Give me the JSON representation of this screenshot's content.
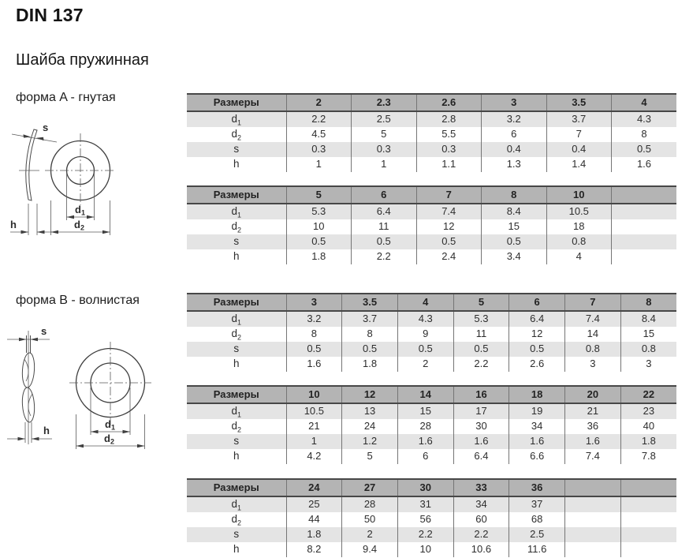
{
  "document": {
    "title": "DIN 137",
    "subtitle": "Шайба пружинная"
  },
  "sections": {
    "a": {
      "label": "форма A - гнутая"
    },
    "b": {
      "label": "форма B - волнистая"
    }
  },
  "drawing": {
    "s_label": "s",
    "h_label": "h",
    "d_base": "d",
    "d1_sub": "1",
    "d2_sub": "2"
  },
  "colors": {
    "header_bg": "#b4b4b4",
    "stripe_bg": "#e4e4e4",
    "border_dark": "#474747",
    "border_light": "#757575",
    "text": "#2e2e2e"
  },
  "tables": [
    {
      "id": "form-a-part-1",
      "header_label": "Размеры",
      "sizes": [
        "2",
        "2.3",
        "2.6",
        "3",
        "3.5",
        "4"
      ],
      "rows": [
        {
          "label": "d",
          "sub": "1",
          "values": [
            "2.2",
            "2.5",
            "2.8",
            "3.2",
            "3.7",
            "4.3"
          ]
        },
        {
          "label": "d",
          "sub": "2",
          "values": [
            "4.5",
            "5",
            "5.5",
            "6",
            "7",
            "8"
          ]
        },
        {
          "label": "s",
          "sub": "",
          "values": [
            "0.3",
            "0.3",
            "0.3",
            "0.4",
            "0.4",
            "0.5"
          ]
        },
        {
          "label": "h",
          "sub": "",
          "values": [
            "1",
            "1",
            "1.1",
            "1.3",
            "1.4",
            "1.6"
          ]
        }
      ]
    },
    {
      "id": "form-a-part-2",
      "header_label": "Размеры",
      "sizes": [
        "5",
        "6",
        "7",
        "8",
        "10",
        ""
      ],
      "rows": [
        {
          "label": "d",
          "sub": "1",
          "values": [
            "5.3",
            "6.4",
            "7.4",
            "8.4",
            "10.5",
            ""
          ]
        },
        {
          "label": "d",
          "sub": "2",
          "values": [
            "10",
            "11",
            "12",
            "15",
            "18",
            ""
          ]
        },
        {
          "label": "s",
          "sub": "",
          "values": [
            "0.5",
            "0.5",
            "0.5",
            "0.5",
            "0.8",
            ""
          ]
        },
        {
          "label": "h",
          "sub": "",
          "values": [
            "1.8",
            "2.2",
            "2.4",
            "3.4",
            "4",
            ""
          ]
        }
      ]
    },
    {
      "id": "form-b-part-1",
      "header_label": "Размеры",
      "sizes": [
        "3",
        "3.5",
        "4",
        "5",
        "6",
        "7",
        "8"
      ],
      "rows": [
        {
          "label": "d",
          "sub": "1",
          "values": [
            "3.2",
            "3.7",
            "4.3",
            "5.3",
            "6.4",
            "7.4",
            "8.4"
          ]
        },
        {
          "label": "d",
          "sub": "2",
          "values": [
            "8",
            "8",
            "9",
            "11",
            "12",
            "14",
            "15"
          ]
        },
        {
          "label": "s",
          "sub": "",
          "values": [
            "0.5",
            "0.5",
            "0.5",
            "0.5",
            "0.5",
            "0.8",
            "0.8"
          ]
        },
        {
          "label": "h",
          "sub": "",
          "values": [
            "1.6",
            "1.8",
            "2",
            "2.2",
            "2.6",
            "3",
            "3"
          ]
        }
      ]
    },
    {
      "id": "form-b-part-2",
      "header_label": "Размеры",
      "sizes": [
        "10",
        "12",
        "14",
        "16",
        "18",
        "20",
        "22"
      ],
      "rows": [
        {
          "label": "d",
          "sub": "1",
          "values": [
            "10.5",
            "13",
            "15",
            "17",
            "19",
            "21",
            "23"
          ]
        },
        {
          "label": "d",
          "sub": "2",
          "values": [
            "21",
            "24",
            "28",
            "30",
            "34",
            "36",
            "40"
          ]
        },
        {
          "label": "s",
          "sub": "",
          "values": [
            "1",
            "1.2",
            "1.6",
            "1.6",
            "1.6",
            "1.6",
            "1.8"
          ]
        },
        {
          "label": "h",
          "sub": "",
          "values": [
            "4.2",
            "5",
            "6",
            "6.4",
            "6.6",
            "7.4",
            "7.8"
          ]
        }
      ]
    },
    {
      "id": "form-b-part-3",
      "header_label": "Размеры",
      "sizes": [
        "24",
        "27",
        "30",
        "33",
        "36",
        "",
        ""
      ],
      "rows": [
        {
          "label": "d",
          "sub": "1",
          "values": [
            "25",
            "28",
            "31",
            "34",
            "37",
            "",
            ""
          ]
        },
        {
          "label": "d",
          "sub": "2",
          "values": [
            "44",
            "50",
            "56",
            "60",
            "68",
            "",
            ""
          ]
        },
        {
          "label": "s",
          "sub": "",
          "values": [
            "1.8",
            "2",
            "2.2",
            "2.2",
            "2.5",
            "",
            ""
          ]
        },
        {
          "label": "h",
          "sub": "",
          "values": [
            "8.2",
            "9.4",
            "10",
            "10.6",
            "11.6",
            "",
            ""
          ]
        }
      ]
    }
  ]
}
